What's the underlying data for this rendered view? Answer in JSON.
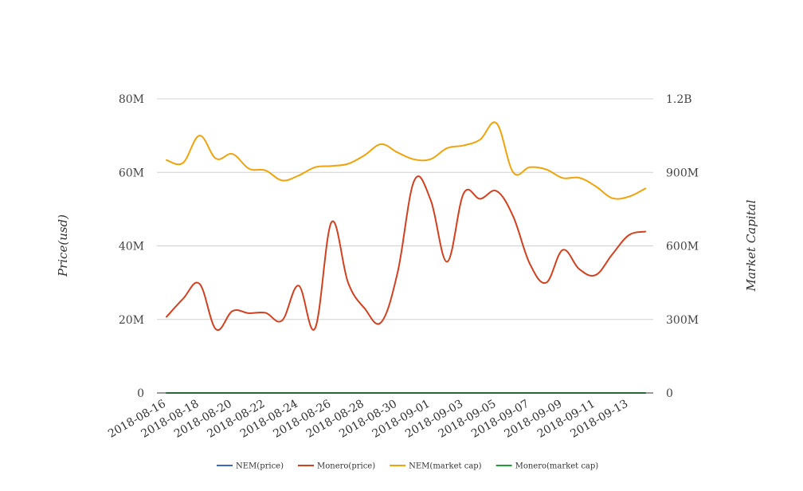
{
  "chart_data": {
    "type": "line",
    "x": [
      "2018-08-16",
      "2018-08-17",
      "2018-08-18",
      "2018-08-19",
      "2018-08-20",
      "2018-08-21",
      "2018-08-22",
      "2018-08-23",
      "2018-08-24",
      "2018-08-25",
      "2018-08-26",
      "2018-08-27",
      "2018-08-28",
      "2018-08-29",
      "2018-08-30",
      "2018-08-31",
      "2018-09-01",
      "2018-09-02",
      "2018-09-03",
      "2018-09-04",
      "2018-09-05",
      "2018-09-06",
      "2018-09-07",
      "2018-09-08",
      "2018-09-09",
      "2018-09-10",
      "2018-09-11",
      "2018-09-12",
      "2018-09-13",
      "2018-09-14"
    ],
    "x_ticks": [
      "2018-08-16",
      "2018-08-18",
      "2018-08-20",
      "2018-08-22",
      "2018-08-24",
      "2018-08-26",
      "2018-08-28",
      "2018-08-30",
      "2018-09-01",
      "2018-09-03",
      "2018-09-05",
      "2018-09-07",
      "2018-09-09",
      "2018-09-11",
      "2018-09-13"
    ],
    "y_left": {
      "label": "Price(usd)",
      "ylim": [
        0,
        80000000
      ],
      "ticks": [
        0,
        20000000,
        40000000,
        60000000,
        80000000
      ],
      "tick_labels": [
        "0",
        "20M",
        "40M",
        "60M",
        "80M"
      ]
    },
    "y_right": {
      "label": "Market Capital",
      "ylim": [
        0,
        1200000000
      ],
      "ticks": [
        0,
        300000000,
        600000000,
        900000000,
        1200000000
      ],
      "tick_labels": [
        "0",
        "300M",
        "600M",
        "900M",
        "1.2B"
      ]
    },
    "grid": true,
    "legend_position": "bottom",
    "series": [
      {
        "name": "NEM(price)",
        "axis": "left",
        "color": "#3a6bbf",
        "values": [
          0.09,
          0.09,
          0.1,
          0.09,
          0.09,
          0.09,
          0.09,
          0.09,
          0.09,
          0.09,
          0.1,
          0.1,
          0.1,
          0.1,
          0.1,
          0.11,
          0.11,
          0.1,
          0.11,
          0.11,
          0.11,
          0.09,
          0.09,
          0.09,
          0.09,
          0.09,
          0.09,
          0.08,
          0.08,
          0.08
        ]
      },
      {
        "name": "Monero(price)",
        "axis": "left",
        "color": "#d2401f",
        "values": [
          20700000,
          25600000,
          29700000,
          17300000,
          22300000,
          21700000,
          21800000,
          19700000,
          29200000,
          17600000,
          46500000,
          30000000,
          23000000,
          19200000,
          32800000,
          57700000,
          52500000,
          35700000,
          54300000,
          52800000,
          54900000,
          48000000,
          35200000,
          30000000,
          38900000,
          33700000,
          32100000,
          37700000,
          42900000,
          43900000
        ]
      },
      {
        "name": "NEM(market cap)",
        "axis": "right",
        "color": "#f0a30a",
        "values": [
          950000000,
          939000000,
          1050000000,
          956000000,
          975000000,
          915000000,
          908000000,
          867000000,
          887000000,
          921000000,
          926000000,
          935000000,
          970000000,
          1015000000,
          981000000,
          953000000,
          954000000,
          999000000,
          1010000000,
          1034000000,
          1100000000,
          900000000,
          921000000,
          912000000,
          877000000,
          878000000,
          843000000,
          795000000,
          801000000,
          834000000
        ]
      },
      {
        "name": "Monero(market cap)",
        "axis": "right",
        "color": "#1f9e35",
        "values": [
          120000,
          120000,
          120000,
          120000,
          120000,
          120000,
          120000,
          120000,
          120000,
          120000,
          120000,
          120000,
          120000,
          120000,
          120000,
          120000,
          120000,
          120000,
          120000,
          120000,
          120000,
          120000,
          120000,
          120000,
          120000,
          120000,
          120000,
          120000,
          120000,
          120000
        ]
      }
    ]
  }
}
